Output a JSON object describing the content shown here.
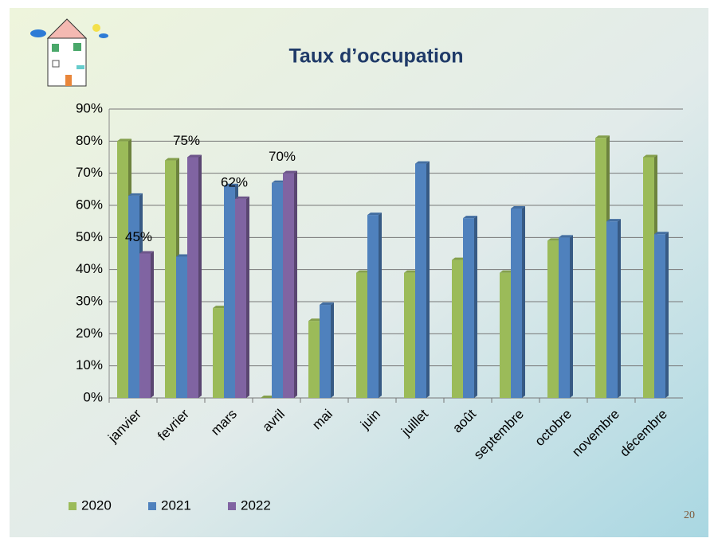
{
  "chart_data": {
    "type": "bar",
    "title": "Taux d’occupation",
    "categories": [
      "janvier",
      "fevrier",
      "mars",
      "avril",
      "mai",
      "juin",
      "juillet",
      "août",
      "septembre",
      "octobre",
      "novembre",
      "décembre"
    ],
    "series": [
      {
        "name": "2020",
        "color": "#9bbb59",
        "values": [
          80,
          74,
          28,
          0,
          24,
          39,
          39,
          43,
          39,
          49,
          81,
          75
        ]
      },
      {
        "name": "2021",
        "color": "#4f81bd",
        "values": [
          63,
          44,
          66,
          67,
          29,
          57,
          73,
          56,
          59,
          50,
          55,
          51
        ]
      },
      {
        "name": "2022",
        "color": "#8064a2",
        "values": [
          45,
          75,
          62,
          70,
          null,
          null,
          null,
          null,
          null,
          null,
          null,
          null
        ],
        "value_labels": [
          "45%",
          "75%",
          "62%",
          "70%",
          null,
          null,
          null,
          null,
          null,
          null,
          null,
          null
        ]
      }
    ],
    "ylim": [
      0,
      90
    ],
    "yticks": [
      {
        "value": 0,
        "label": "0%"
      },
      {
        "value": 10,
        "label": "10%"
      },
      {
        "value": 20,
        "label": "20%"
      },
      {
        "value": 30,
        "label": "30%"
      },
      {
        "value": 40,
        "label": "40%"
      },
      {
        "value": 50,
        "label": "50%"
      },
      {
        "value": 60,
        "label": "60%"
      },
      {
        "value": 70,
        "label": "70%"
      },
      {
        "value": 80,
        "label": "80%"
      },
      {
        "value": 90,
        "label": "90%"
      }
    ],
    "grid": true,
    "legend": "bottom"
  },
  "slide_number": "20"
}
